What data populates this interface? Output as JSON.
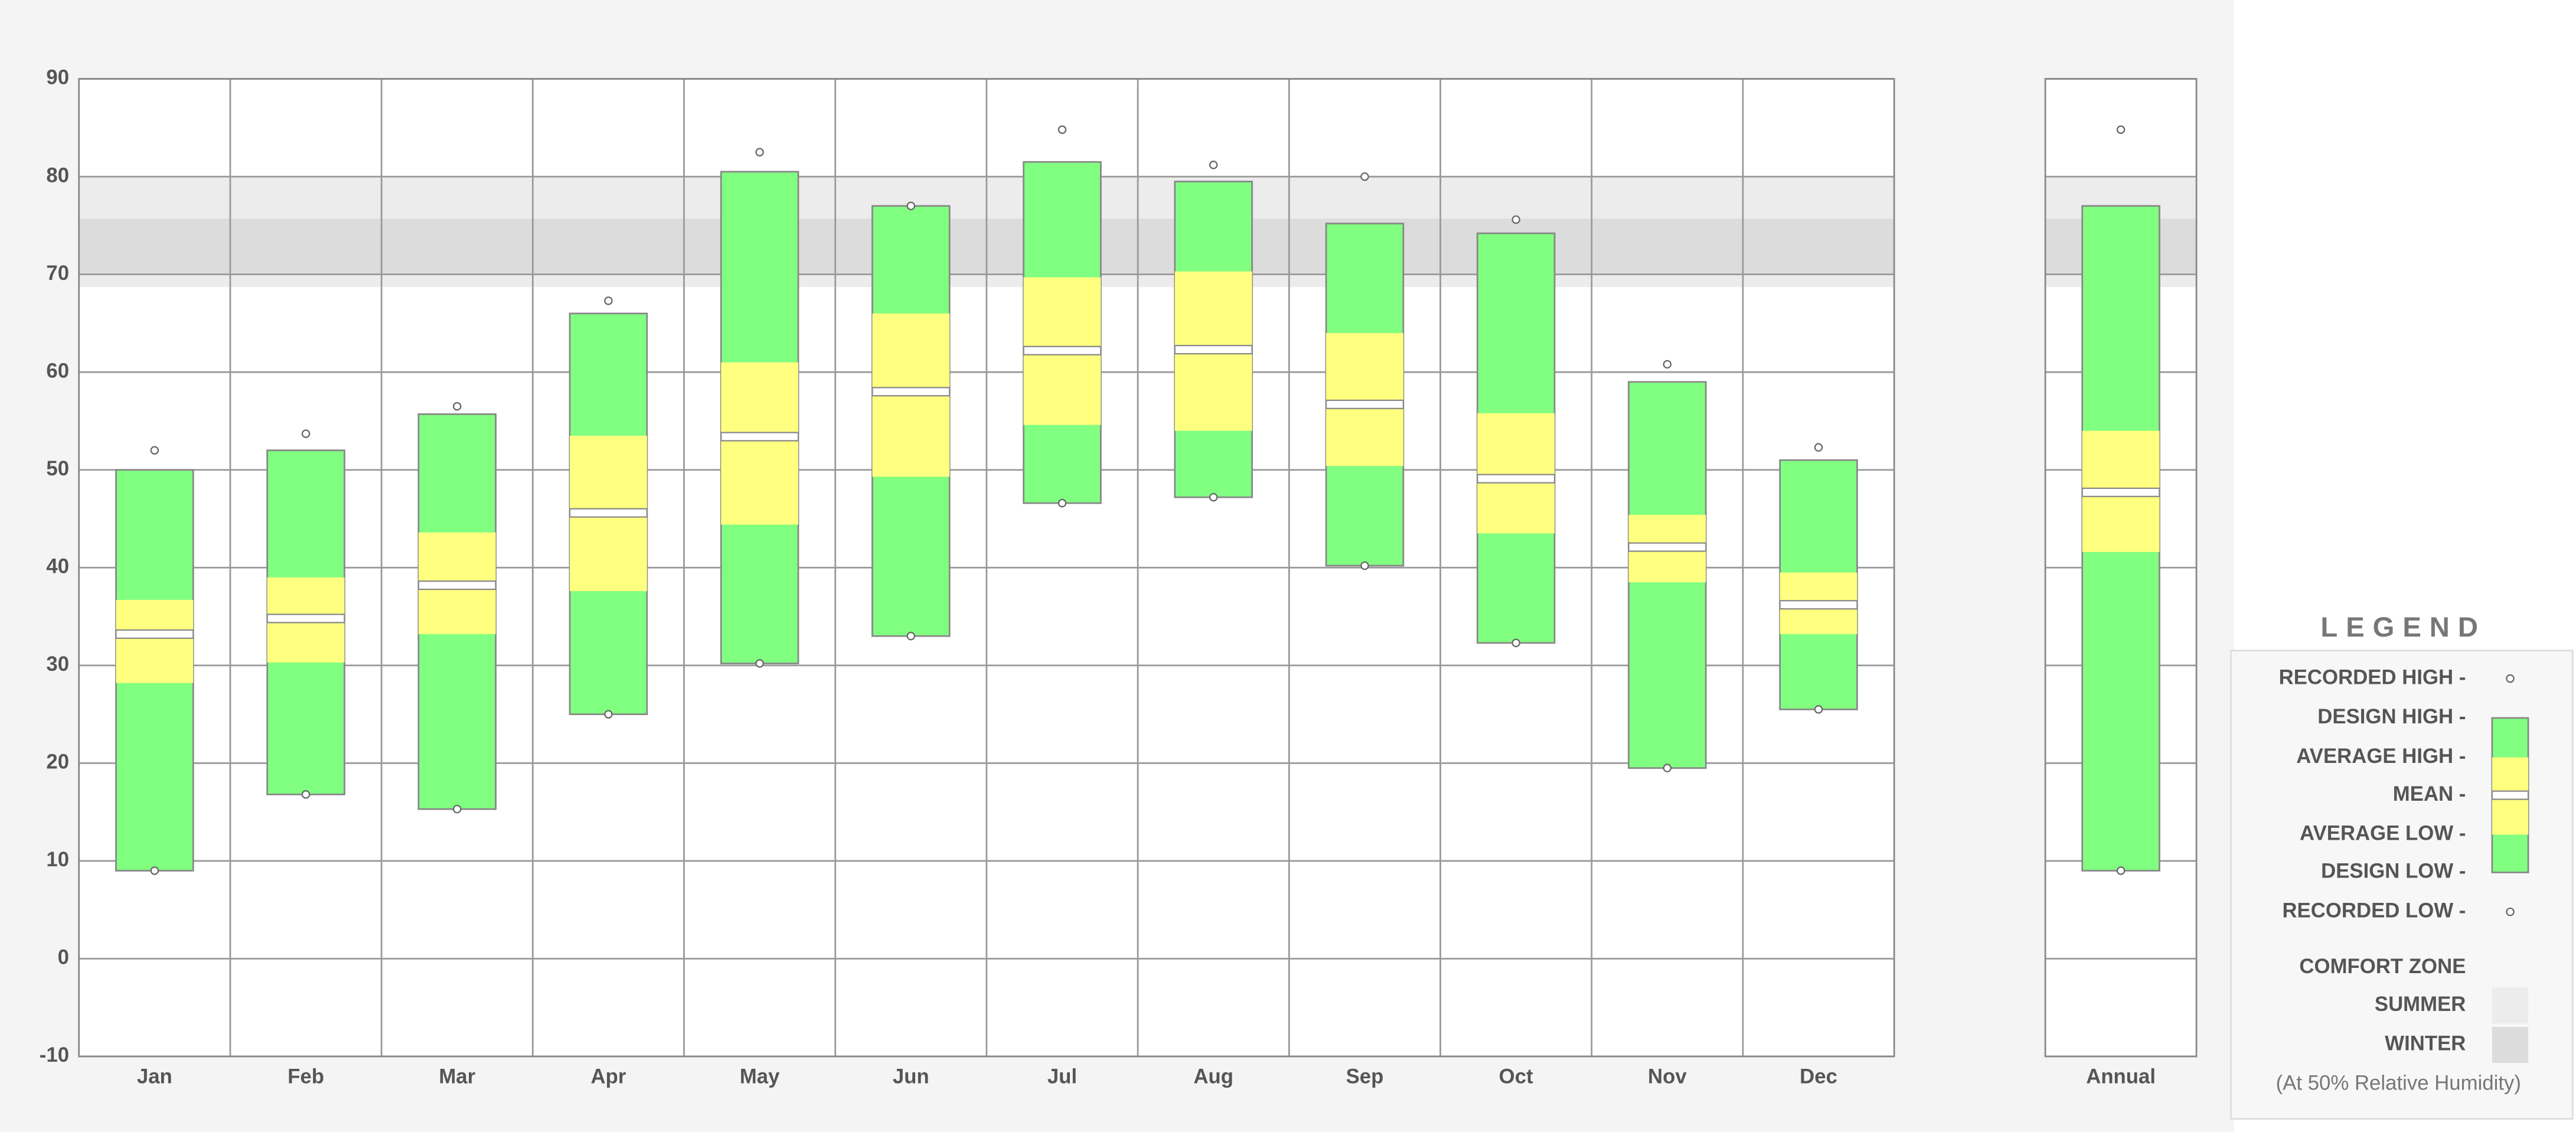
{
  "chart_data": [
    {
      "type": "climate",
      "categories": [
        "Jan",
        "Feb",
        "Mar",
        "Apr",
        "May",
        "Jun",
        "Jul",
        "Aug",
        "Sep",
        "Oct",
        "Nov",
        "Dec"
      ],
      "ylim": [
        -10,
        90
      ],
      "yticks": [
        -10,
        0,
        10,
        20,
        30,
        40,
        50,
        60,
        70,
        80,
        90
      ],
      "grid": true,
      "series": [
        {
          "name": "RECORDED HIGH -",
          "color": "#ffffff",
          "values": [
            52,
            53.7,
            56.5,
            67.3,
            82.5,
            77,
            84.8,
            81.2,
            80,
            75.6,
            60.8,
            52.3
          ]
        },
        {
          "name": "DESIGN HIGH -",
          "color": "#80ff80",
          "values": [
            50,
            52,
            55.7,
            66,
            80.5,
            77,
            81.5,
            79.5,
            75.2,
            74.2,
            59,
            51
          ]
        },
        {
          "name": "AVERAGE HIGH -",
          "color": "#ffff80",
          "values": [
            36.7,
            39,
            43.6,
            53.5,
            61,
            66,
            69.7,
            70.3,
            64,
            55.8,
            45.4,
            39.5
          ]
        },
        {
          "name": "MEAN -",
          "color": "#ffffff",
          "values": [
            33.2,
            34.8,
            38.2,
            45.6,
            53.4,
            58,
            62.2,
            62.3,
            56.7,
            49.1,
            42.1,
            36.2
          ]
        },
        {
          "name": "AVERAGE LOW -",
          "color": "#ffff80",
          "values": [
            28.2,
            30.3,
            33.2,
            37.6,
            44.4,
            49.3,
            54.6,
            54,
            50.4,
            43.5,
            38.5,
            33.2
          ]
        },
        {
          "name": "DESIGN LOW -",
          "color": "#80ff80",
          "values": [
            9,
            16.8,
            15.3,
            25,
            30.2,
            33,
            46.6,
            47.2,
            40.2,
            32.3,
            19.5,
            25.5
          ]
        },
        {
          "name": "RECORDED LOW -",
          "color": "#ffffff",
          "values": [
            9,
            16.8,
            15.3,
            25,
            30.2,
            33,
            46.6,
            47.2,
            40.2,
            32.3,
            19.5,
            25.5
          ]
        }
      ]
    },
    {
      "type": "climate",
      "categories": [
        "Annual"
      ],
      "ylim": [
        -10,
        90
      ],
      "yticks": [
        -10,
        0,
        10,
        20,
        30,
        40,
        50,
        60,
        70,
        80,
        90
      ],
      "grid": true,
      "series": [
        {
          "color": "#ffffff",
          "values": [
            84.8
          ]
        },
        {
          "color": "#80ff80",
          "values": [
            77
          ]
        },
        {
          "color": "#ffff80",
          "values": [
            54
          ]
        },
        {
          "color": "#ffffff",
          "values": [
            47.7
          ]
        },
        {
          "color": "#ffff80",
          "values": [
            41.6
          ]
        },
        {
          "color": "#80ff80",
          "values": [
            9
          ]
        },
        {
          "color": "#ffffff",
          "values": [
            9
          ]
        }
      ]
    }
  ],
  "legend": {
    "title": "LEGEND"
  },
  "comfort_zone": {
    "title": "COMFORT ZONE",
    "zones": [
      {
        "name": "SUMMER",
        "range": [
          68.7,
          80
        ],
        "color": "#ececec"
      },
      {
        "name": "WINTER",
        "range": [
          70,
          75.7
        ],
        "color": "#dcdcdc"
      }
    ],
    "note": "(At 50% Relative Humidity)"
  }
}
